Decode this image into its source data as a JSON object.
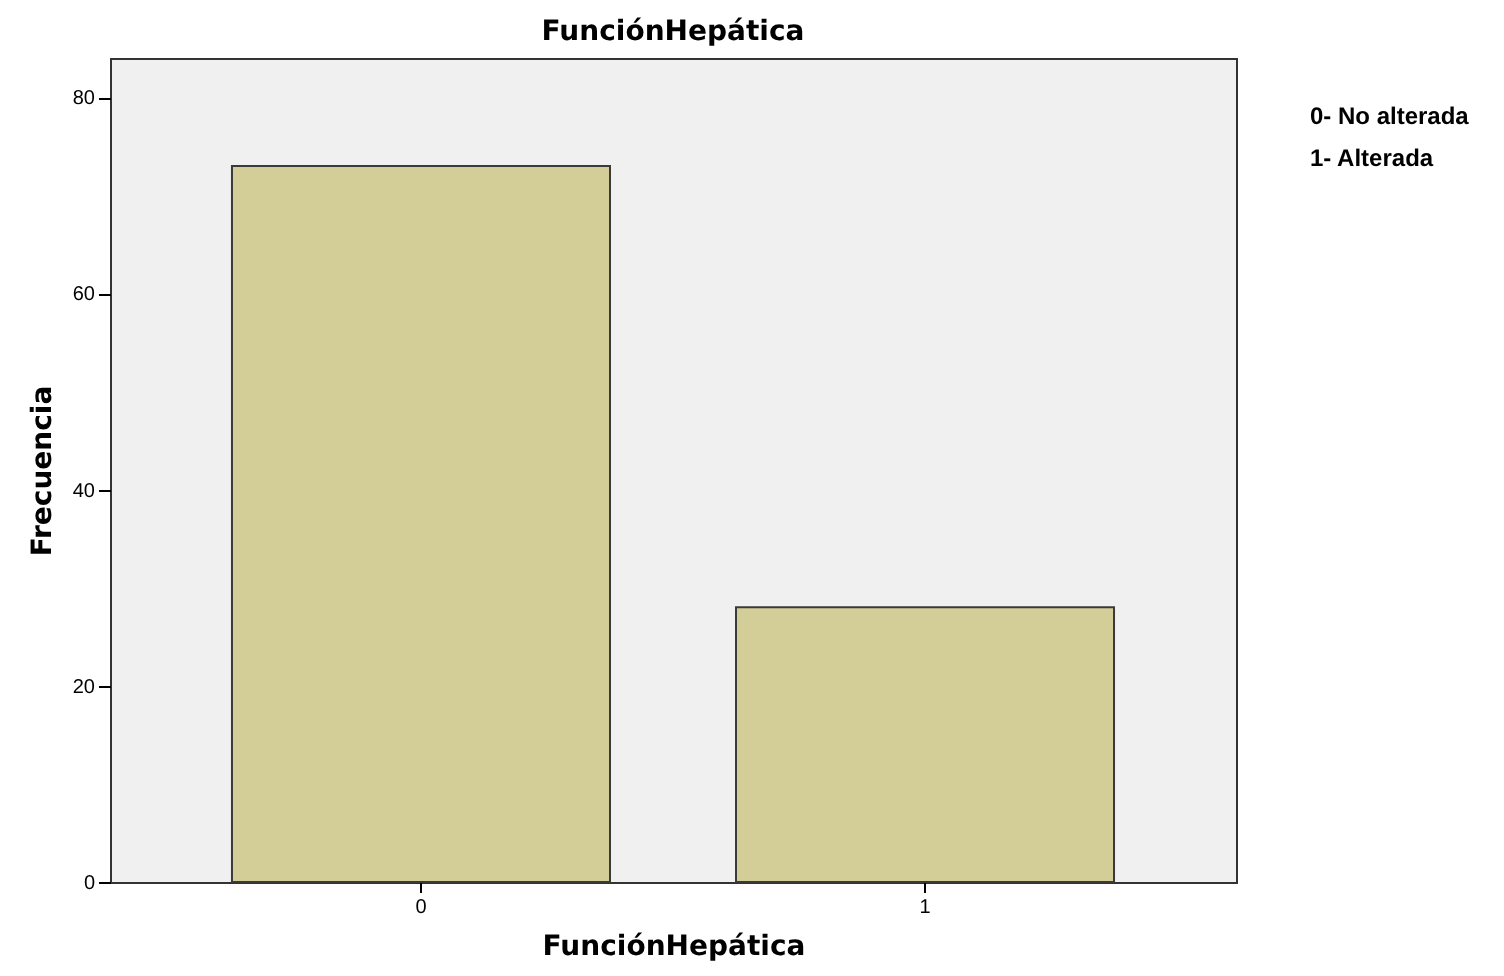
{
  "chart_data": {
    "type": "bar",
    "title": "FunciónHepática",
    "xlabel": "FunciónHepática",
    "ylabel": "Frecuencia",
    "categories": [
      "0",
      "1"
    ],
    "values": [
      73,
      28
    ],
    "color": "#d3ce97",
    "ylim": [
      0,
      84
    ],
    "yticks": [
      0,
      20,
      40,
      60,
      80
    ],
    "annotations": [
      "0- No alterada",
      "1- Alterada"
    ]
  }
}
